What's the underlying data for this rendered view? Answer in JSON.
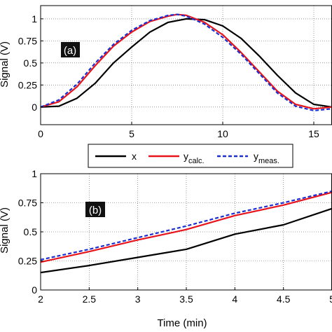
{
  "chart_data": [
    {
      "type": "line",
      "panel_label": "(a)",
      "ylabel": "Signal (V)",
      "xlabel": "",
      "xlim": [
        0,
        16
      ],
      "ylim": [
        -0.2,
        1.15
      ],
      "xticks": [
        0,
        5,
        10,
        15
      ],
      "xtick_labels": [
        "0",
        "5",
        "10",
        "15"
      ],
      "yticks": [
        0,
        0.25,
        0.5,
        0.75,
        1
      ],
      "ytick_labels": [
        "0",
        "0.25",
        "0.5",
        "0.75",
        "1"
      ],
      "grid": true,
      "series": [
        {
          "name": "x",
          "color": "#000000",
          "style": "solid",
          "x": [
            0,
            1,
            2,
            3,
            4,
            5,
            6,
            7,
            8,
            9,
            10,
            11,
            12,
            13,
            14,
            15,
            16
          ],
          "y": [
            0,
            0.01,
            0.1,
            0.27,
            0.5,
            0.68,
            0.85,
            0.96,
            1.0,
            0.99,
            0.92,
            0.78,
            0.58,
            0.36,
            0.16,
            0.03,
            0.0
          ]
        },
        {
          "name": "y_calc.",
          "color": "#e8141c",
          "style": "solid",
          "x": [
            0,
            1,
            2,
            3,
            4,
            5,
            6,
            7,
            7.5,
            8,
            9,
            10,
            11,
            12,
            13,
            14,
            15,
            16
          ],
          "y": [
            0,
            0.06,
            0.23,
            0.47,
            0.69,
            0.85,
            0.97,
            1.03,
            1.05,
            1.04,
            0.96,
            0.82,
            0.62,
            0.4,
            0.18,
            0.03,
            -0.02,
            0.0
          ]
        },
        {
          "name": "y_meas.",
          "color": "#1c2fd1",
          "style": "dashed",
          "x": [
            0,
            1,
            2,
            3,
            4,
            5,
            6,
            7,
            7.5,
            8,
            9,
            10,
            11,
            12,
            13,
            14,
            15,
            16
          ],
          "y": [
            0,
            0.08,
            0.26,
            0.5,
            0.71,
            0.87,
            0.98,
            1.04,
            1.05,
            1.03,
            0.94,
            0.79,
            0.6,
            0.38,
            0.16,
            0.01,
            -0.04,
            -0.02
          ]
        }
      ]
    },
    {
      "type": "line",
      "panel_label": "(b)",
      "ylabel": "Signal (V)",
      "xlabel": "Time (min)",
      "xlim": [
        2,
        5
      ],
      "ylim": [
        0,
        1
      ],
      "xticks": [
        2,
        2.5,
        3,
        3.5,
        4,
        4.5,
        5
      ],
      "xtick_labels": [
        "2",
        "2.5",
        "3",
        "3.5",
        "4",
        "4.5",
        "5"
      ],
      "yticks": [
        0,
        0.25,
        0.5,
        0.75,
        1
      ],
      "ytick_labels": [
        "0",
        "0.25",
        "0.5",
        "0.75",
        "1"
      ],
      "grid": true,
      "series": [
        {
          "name": "x",
          "color": "#000000",
          "style": "solid",
          "x": [
            2,
            2.5,
            3,
            3.5,
            4,
            4.5,
            5
          ],
          "y": [
            0.15,
            0.21,
            0.28,
            0.35,
            0.48,
            0.56,
            0.7
          ]
        },
        {
          "name": "y_calc.",
          "color": "#e8141c",
          "style": "solid",
          "x": [
            2,
            2.5,
            3,
            3.5,
            4,
            4.5,
            5
          ],
          "y": [
            0.24,
            0.33,
            0.43,
            0.52,
            0.64,
            0.73,
            0.84
          ]
        },
        {
          "name": "y_meas.",
          "color": "#1c2fd1",
          "style": "dashed",
          "x": [
            2,
            2.5,
            3,
            3.5,
            4,
            4.5,
            5
          ],
          "y": [
            0.26,
            0.35,
            0.45,
            0.55,
            0.66,
            0.75,
            0.85
          ]
        }
      ]
    }
  ],
  "legend": {
    "placement": "between-panels",
    "entries": [
      {
        "main": "x",
        "sub": ""
      },
      {
        "main": "y",
        "sub": "calc."
      },
      {
        "main": "y",
        "sub": "meas."
      }
    ]
  }
}
